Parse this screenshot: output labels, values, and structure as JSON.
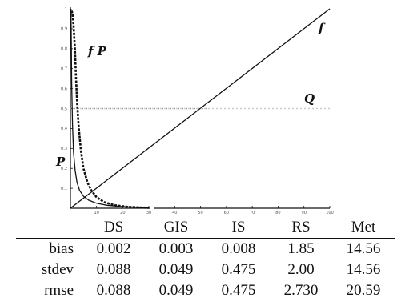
{
  "chart_data": {
    "type": "line",
    "x_axis": {
      "break_segments": [
        {
          "range": [
            0,
            30
          ],
          "ticks": [
            10,
            20,
            30
          ]
        },
        {
          "range": [
            30,
            100
          ],
          "ticks": [
            40,
            50,
            60,
            70,
            80,
            90,
            100
          ]
        }
      ]
    },
    "y_axis": {
      "range": [
        0,
        1
      ],
      "ticks": [
        0.1,
        0.2,
        0.3,
        0.4,
        0.5,
        0.6,
        0.7,
        0.8,
        0.9
      ]
    },
    "series": [
      {
        "name": "f",
        "style": "solid",
        "color": "#111111",
        "x": [
          0,
          100
        ],
        "y": [
          0,
          1
        ]
      },
      {
        "name": "Q",
        "style": "dotted",
        "color": "#999999",
        "x": [
          0,
          100
        ],
        "y": [
          0.5,
          0.5
        ]
      },
      {
        "name": "P",
        "style": "solid",
        "color": "#111111",
        "x": [
          0.2,
          0.3,
          0.5,
          0.8,
          1.2,
          1.8,
          2.5,
          3.5,
          5,
          7,
          10,
          14,
          20,
          30
        ],
        "y": [
          1.0,
          0.88,
          0.62,
          0.42,
          0.28,
          0.19,
          0.13,
          0.09,
          0.06,
          0.04,
          0.025,
          0.015,
          0.008,
          0.003
        ]
      },
      {
        "name": "fP",
        "style": "dashed",
        "color": "#111111",
        "x": [
          0.5,
          0.9,
          1.3,
          1.7,
          2.1,
          2.6,
          3.2,
          4,
          5,
          6.5,
          8,
          10,
          13,
          17,
          22,
          30
        ],
        "y": [
          0.99,
          0.97,
          0.9,
          0.8,
          0.66,
          0.52,
          0.4,
          0.29,
          0.2,
          0.13,
          0.09,
          0.055,
          0.03,
          0.015,
          0.007,
          0.002
        ]
      }
    ],
    "labels": {
      "f": "f",
      "Q": "Q",
      "P": "P",
      "fP": "f P"
    }
  },
  "table": {
    "columns": [
      "DS",
      "GIS",
      "IS",
      "RS",
      "Met"
    ],
    "rows": [
      {
        "label": "bias",
        "values": [
          "0.002",
          "0.003",
          "0.008",
          "1.85",
          "14.56"
        ]
      },
      {
        "label": "stdev",
        "values": [
          "0.088",
          "0.049",
          "0.475",
          "2.00",
          "14.56"
        ]
      },
      {
        "label": "rmse",
        "values": [
          "0.088",
          "0.049",
          "0.475",
          "2.730",
          "20.59"
        ]
      }
    ]
  }
}
